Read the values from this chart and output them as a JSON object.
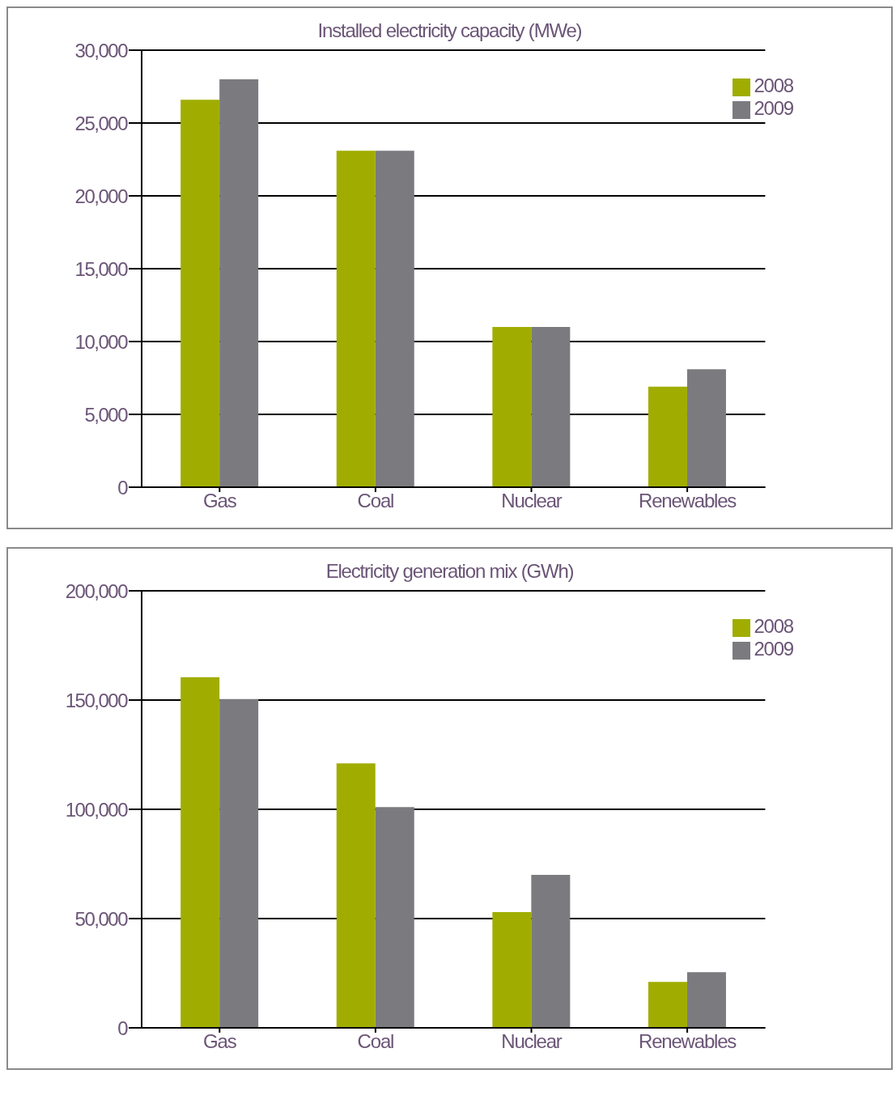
{
  "chart_data": [
    {
      "type": "bar",
      "title": "Installed electricity capacity (MWe)",
      "categories": [
        "Gas",
        "Coal",
        "Nuclear",
        "Renewables"
      ],
      "series": [
        {
          "name": "2008",
          "color": "#a0ad00",
          "values": [
            26600,
            23100,
            11000,
            6900
          ]
        },
        {
          "name": "2009",
          "color": "#7b7b7f",
          "values": [
            28000,
            23100,
            11000,
            8100
          ]
        }
      ],
      "ylim": [
        0,
        30000
      ],
      "yticks": [
        0,
        {
          "value": 5000,
          "label": "5,000"
        },
        {
          "value": 10000,
          "label": "10,000"
        },
        {
          "value": 15000,
          "label": "15,000"
        },
        {
          "value": 20000,
          "label": "20,000"
        },
        {
          "value": 25000,
          "label": "25,000"
        },
        {
          "value": 30000,
          "label": "30,000"
        }
      ],
      "grid": "y",
      "legend": "top right"
    },
    {
      "type": "bar",
      "title": "Electricity generation mix (GWh)",
      "categories": [
        "Gas",
        "Coal",
        "Nuclear",
        "Renewables"
      ],
      "series": [
        {
          "name": "2008",
          "color": "#a0ad00",
          "values": [
            160500,
            121000,
            53000,
            21000
          ]
        },
        {
          "name": "2009",
          "color": "#7b7b7f",
          "values": [
            150500,
            101000,
            70000,
            25500
          ]
        }
      ],
      "ylim": [
        0,
        200000
      ],
      "yticks": [
        0,
        {
          "value": 50000,
          "label": "50,000"
        },
        {
          "value": 100000,
          "label": "100,000"
        },
        {
          "value": 150000,
          "label": "150,000"
        },
        {
          "value": 200000,
          "label": "200,000"
        }
      ],
      "grid": "y",
      "legend": "top right"
    }
  ]
}
